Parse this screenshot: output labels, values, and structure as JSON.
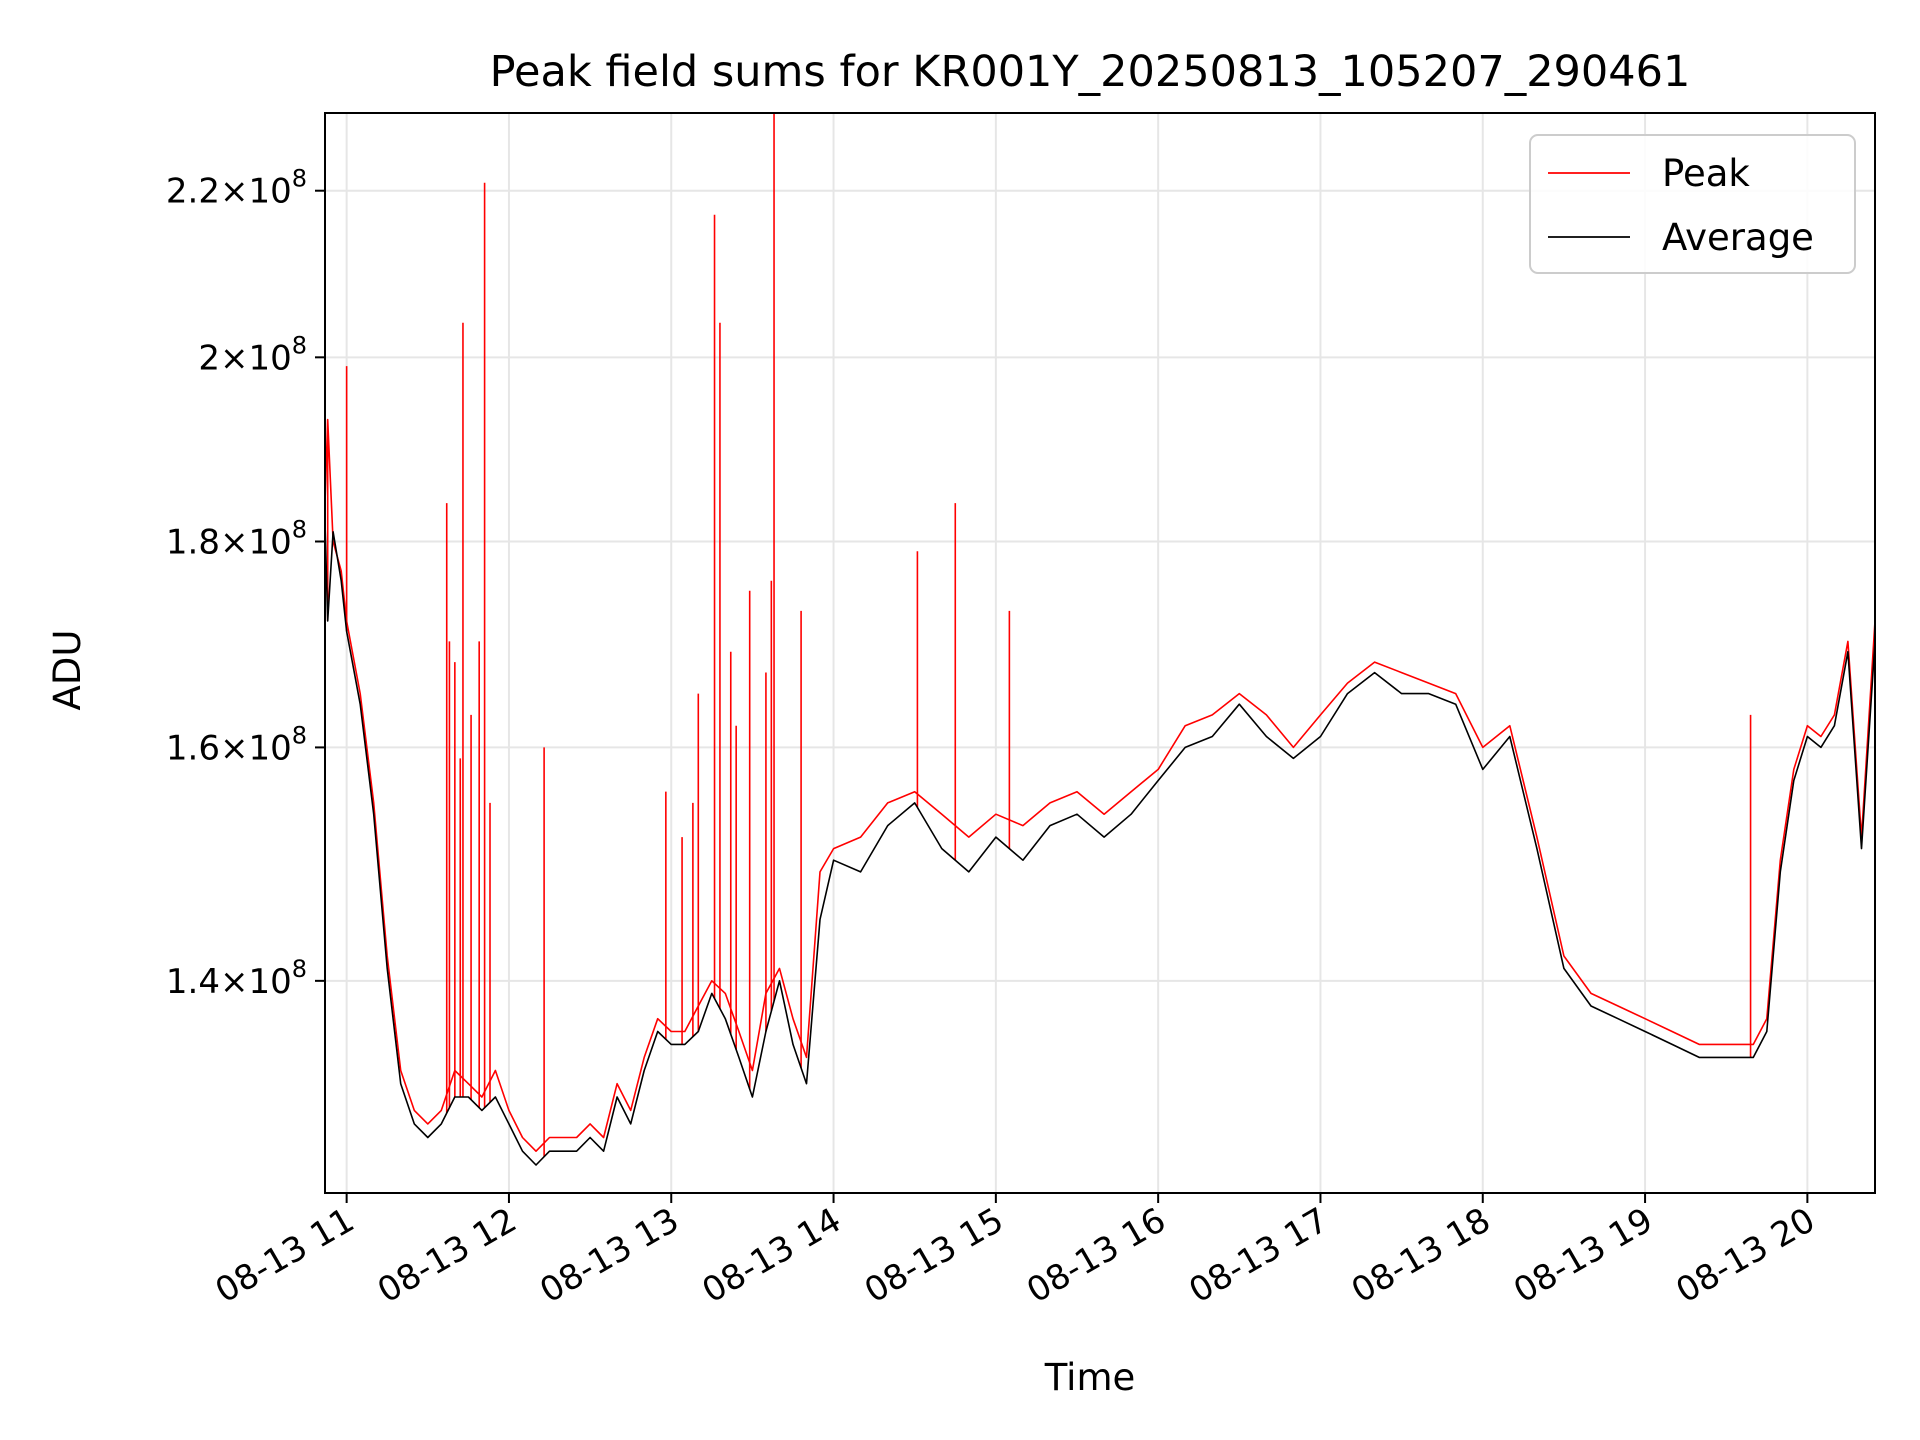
{
  "chart_data": {
    "type": "line",
    "title": "Peak field sums for KR001Y_20250813_105207_290461",
    "xlabel": "Time",
    "ylabel": "ADU",
    "yscale": "log",
    "xlim": [
      "2025-08-13 10:52",
      "2025-08-13 20:25"
    ],
    "ylim": [
      124000000,
      230000000
    ],
    "grid": true,
    "legend_position": "top-right",
    "x_ticks": [
      "08-13 11",
      "08-13 12",
      "08-13 13",
      "08-13 14",
      "08-13 15",
      "08-13 16",
      "08-13 17",
      "08-13 18",
      "08-13 19",
      "08-13 20"
    ],
    "y_ticks": [
      {
        "value": 140000000,
        "mant": "1.4",
        "exp": "8"
      },
      {
        "value": 160000000,
        "mant": "1.6",
        "exp": "8"
      },
      {
        "value": 180000000,
        "mant": "1.8",
        "exp": "8"
      },
      {
        "value": 200000000,
        "mant": "2",
        "exp": "8"
      },
      {
        "value": 220000000,
        "mant": "2.2",
        "exp": "8"
      }
    ],
    "series": [
      {
        "name": "Peak",
        "color": "#ff0000",
        "x": [
          "10:52",
          "10:53",
          "10:55",
          "10:58",
          "11:00",
          "11:05",
          "11:10",
          "11:15",
          "11:20",
          "11:25",
          "11:30",
          "11:35",
          "11:40",
          "11:45",
          "11:50",
          "11:55",
          "12:00",
          "12:05",
          "12:10",
          "12:15",
          "12:20",
          "12:25",
          "12:30",
          "12:35",
          "12:40",
          "12:45",
          "12:50",
          "12:55",
          "13:00",
          "13:05",
          "13:10",
          "13:15",
          "13:20",
          "13:25",
          "13:30",
          "13:35",
          "13:40",
          "13:45",
          "13:50",
          "13:55",
          "14:00",
          "14:10",
          "14:20",
          "14:30",
          "14:40",
          "14:50",
          "15:00",
          "15:10",
          "15:20",
          "15:30",
          "15:40",
          "15:50",
          "16:00",
          "16:10",
          "16:20",
          "16:30",
          "16:40",
          "16:50",
          "17:00",
          "17:10",
          "17:20",
          "17:30",
          "17:40",
          "17:50",
          "18:00",
          "18:10",
          "18:20",
          "18:30",
          "18:40",
          "18:50",
          "19:00",
          "19:10",
          "19:20",
          "19:30",
          "19:40",
          "19:45",
          "19:50",
          "19:55",
          "20:00",
          "20:05",
          "20:10",
          "20:15",
          "20:20",
          "20:25"
        ],
        "y": [
          184000000,
          193000000,
          180000000,
          177000000,
          172000000,
          165000000,
          155000000,
          142000000,
          133000000,
          130000000,
          129000000,
          130000000,
          133000000,
          132000000,
          131000000,
          133000000,
          130000000,
          128000000,
          127000000,
          128000000,
          128000000,
          128000000,
          129000000,
          128000000,
          132000000,
          130000000,
          134000000,
          137000000,
          136000000,
          136000000,
          138000000,
          140000000,
          139000000,
          136000000,
          133000000,
          139000000,
          141000000,
          137000000,
          134000000,
          149000000,
          151000000,
          152000000,
          155000000,
          156000000,
          154000000,
          152000000,
          154000000,
          153000000,
          155000000,
          156000000,
          154000000,
          156000000,
          158000000,
          162000000,
          163000000,
          165000000,
          163000000,
          160000000,
          163000000,
          166000000,
          168000000,
          167000000,
          166000000,
          165000000,
          160000000,
          162000000,
          152000000,
          142000000,
          139000000,
          138000000,
          137000000,
          136000000,
          135000000,
          135000000,
          135000000,
          137000000,
          150000000,
          158000000,
          162000000,
          161000000,
          163000000,
          170000000,
          152000000,
          172000000
        ]
      },
      {
        "name": "Average",
        "color": "#000000",
        "x": [
          "10:52",
          "10:53",
          "10:55",
          "10:58",
          "11:00",
          "11:05",
          "11:10",
          "11:15",
          "11:20",
          "11:25",
          "11:30",
          "11:35",
          "11:40",
          "11:45",
          "11:50",
          "11:55",
          "12:00",
          "12:05",
          "12:10",
          "12:15",
          "12:20",
          "12:25",
          "12:30",
          "12:35",
          "12:40",
          "12:45",
          "12:50",
          "12:55",
          "13:00",
          "13:05",
          "13:10",
          "13:15",
          "13:20",
          "13:25",
          "13:30",
          "13:35",
          "13:40",
          "13:45",
          "13:50",
          "13:55",
          "14:00",
          "14:10",
          "14:20",
          "14:30",
          "14:40",
          "14:50",
          "15:00",
          "15:10",
          "15:20",
          "15:30",
          "15:40",
          "15:50",
          "16:00",
          "16:10",
          "16:20",
          "16:30",
          "16:40",
          "16:50",
          "17:00",
          "17:10",
          "17:20",
          "17:30",
          "17:40",
          "17:50",
          "18:00",
          "18:10",
          "18:20",
          "18:30",
          "18:40",
          "18:50",
          "19:00",
          "19:10",
          "19:20",
          "19:30",
          "19:40",
          "19:45",
          "19:50",
          "19:55",
          "20:00",
          "20:05",
          "20:10",
          "20:15",
          "20:20",
          "20:25"
        ],
        "y": [
          182000000,
          172000000,
          181000000,
          176000000,
          171000000,
          164000000,
          154000000,
          141000000,
          132000000,
          129000000,
          128000000,
          129000000,
          131000000,
          131000000,
          130000000,
          131000000,
          129000000,
          127000000,
          126000000,
          127000000,
          127000000,
          127000000,
          128000000,
          127000000,
          131000000,
          129000000,
          133000000,
          136000000,
          135000000,
          135000000,
          136000000,
          139000000,
          137000000,
          134000000,
          131000000,
          136000000,
          140000000,
          135000000,
          132000000,
          145000000,
          150000000,
          149000000,
          153000000,
          155000000,
          151000000,
          149000000,
          152000000,
          150000000,
          153000000,
          154000000,
          152000000,
          154000000,
          157000000,
          160000000,
          161000000,
          164000000,
          161000000,
          159000000,
          161000000,
          165000000,
          167000000,
          165000000,
          165000000,
          164000000,
          158000000,
          161000000,
          151000000,
          141000000,
          138000000,
          137000000,
          136000000,
          135000000,
          134000000,
          134000000,
          134000000,
          136000000,
          149000000,
          157000000,
          161000000,
          160000000,
          162000000,
          169000000,
          151000000,
          170000000
        ]
      }
    ],
    "peak_spikes": [
      {
        "x": "10:53",
        "y": 193000000
      },
      {
        "x": "11:00",
        "y": 199000000
      },
      {
        "x": "11:37",
        "y": 184000000
      },
      {
        "x": "11:38",
        "y": 170000000
      },
      {
        "x": "11:40",
        "y": 168000000
      },
      {
        "x": "11:42",
        "y": 159000000
      },
      {
        "x": "11:43",
        "y": 204000000
      },
      {
        "x": "11:46",
        "y": 163000000
      },
      {
        "x": "11:49",
        "y": 170000000
      },
      {
        "x": "11:51",
        "y": 221000000
      },
      {
        "x": "11:53",
        "y": 155000000
      },
      {
        "x": "12:13",
        "y": 160000000
      },
      {
        "x": "12:58",
        "y": 156000000
      },
      {
        "x": "13:04",
        "y": 152000000
      },
      {
        "x": "13:08",
        "y": 155000000
      },
      {
        "x": "13:10",
        "y": 165000000
      },
      {
        "x": "13:16",
        "y": 217000000
      },
      {
        "x": "13:18",
        "y": 204000000
      },
      {
        "x": "13:22",
        "y": 169000000
      },
      {
        "x": "13:24",
        "y": 162000000
      },
      {
        "x": "13:29",
        "y": 175000000
      },
      {
        "x": "13:35",
        "y": 167000000
      },
      {
        "x": "13:37",
        "y": 176000000
      },
      {
        "x": "13:38",
        "y": 230000000
      },
      {
        "x": "13:48",
        "y": 173000000
      },
      {
        "x": "14:31",
        "y": 179000000
      },
      {
        "x": "14:45",
        "y": 184000000
      },
      {
        "x": "15:05",
        "y": 173000000
      },
      {
        "x": "19:39",
        "y": 163000000
      }
    ]
  }
}
